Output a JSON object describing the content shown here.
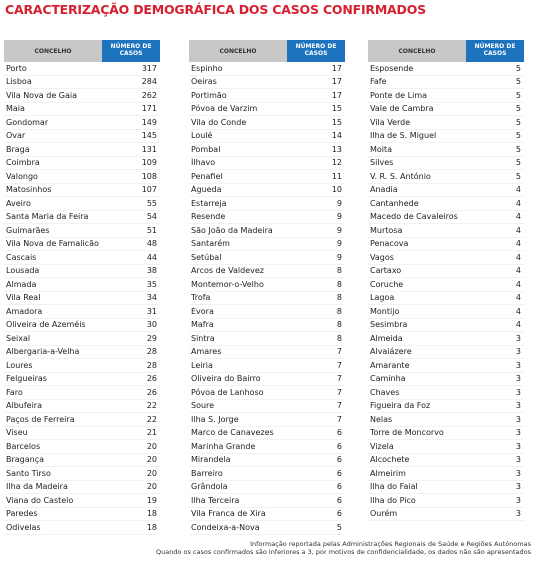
{
  "title": "CARACTERIZAÇÃO DEMOGRÁFICA DOS CASOS CONFIRMADOS",
  "tables": [
    {
      "header": [
        "CONCELHO",
        "NÚMERO DE CASOS"
      ],
      "rows": [
        [
          "Porto",
          317
        ],
        [
          "Lisboa",
          284
        ],
        [
          "Vila Nova de Gaia",
          262
        ],
        [
          "Maia",
          171
        ],
        [
          "Gondomar",
          149
        ],
        [
          "Ovar",
          145
        ],
        [
          "Braga",
          131
        ],
        [
          "Coimbra",
          109
        ],
        [
          "Valongo",
          108
        ],
        [
          "Matosinhos",
          107
        ],
        [
          "Aveiro",
          55
        ],
        [
          "Santa Maria da Feira",
          54
        ],
        [
          "Guimarães",
          51
        ],
        [
          "Vila Nova de Famalicão",
          48
        ],
        [
          "Cascais",
          44
        ],
        [
          "Lousada",
          38
        ],
        [
          "Almada",
          35
        ],
        [
          "Vila Real",
          34
        ],
        [
          "Amadora",
          31
        ],
        [
          "Oliveira de Azeméis",
          30
        ],
        [
          "Seixal",
          29
        ],
        [
          "Albergaria-a-Velha",
          28
        ],
        [
          "Loures",
          28
        ],
        [
          "Felgueiras",
          26
        ],
        [
          "Faro",
          26
        ],
        [
          "Albufeira",
          22
        ],
        [
          "Paços de Ferreira",
          22
        ],
        [
          "Viseu",
          21
        ],
        [
          "Barcelos",
          20
        ],
        [
          "Bragança",
          20
        ],
        [
          "Santo Tirso",
          20
        ],
        [
          "Ilha da Madeira",
          20
        ],
        [
          "Viana do Castelo",
          19
        ],
        [
          "Paredes",
          18
        ],
        [
          "Odivelas",
          18
        ]
      ]
    },
    {
      "header": [
        "CONCELHO",
        "NÚMERO DE CASOS"
      ],
      "rows": [
        [
          "Espinho",
          17
        ],
        [
          "Oeiras",
          17
        ],
        [
          "Portimão",
          17
        ],
        [
          "Póvoa de Varzim",
          15
        ],
        [
          "Vila do Conde",
          15
        ],
        [
          "Loulé",
          14
        ],
        [
          "Pombal",
          13
        ],
        [
          "Ílhavo",
          12
        ],
        [
          "Penafiel",
          11
        ],
        [
          "Águeda",
          10
        ],
        [
          "Estarreja",
          9
        ],
        [
          "Resende",
          9
        ],
        [
          "São João da Madeira",
          9
        ],
        [
          "Santarém",
          9
        ],
        [
          "Setúbal",
          9
        ],
        [
          "Arcos de Valdevez",
          8
        ],
        [
          "Montemor-o-Velho",
          8
        ],
        [
          "Trofa",
          8
        ],
        [
          "Évora",
          8
        ],
        [
          "Mafra",
          8
        ],
        [
          "Sintra",
          8
        ],
        [
          "Amares",
          7
        ],
        [
          "Leiria",
          7
        ],
        [
          "Oliveira do Bairro",
          7
        ],
        [
          "Póvoa de Lanhoso",
          7
        ],
        [
          "Soure",
          7
        ],
        [
          "Ilha S. Jorge",
          7
        ],
        [
          "Marco de Canavezes",
          6
        ],
        [
          "Marinha Grande",
          6
        ],
        [
          "Mirandela",
          6
        ],
        [
          "Barreiro",
          6
        ],
        [
          "Grândola",
          6
        ],
        [
          "Ilha Terceira",
          6
        ],
        [
          "Vila Franca de Xira",
          6
        ],
        [
          "Condeixa-a-Nova",
          5
        ]
      ]
    },
    {
      "header": [
        "CONCELHO",
        "NÚMERO DE CASOS"
      ],
      "rows": [
        [
          "Esposende",
          5
        ],
        [
          "Fafe",
          5
        ],
        [
          "Ponte de Lima",
          5
        ],
        [
          "Vale de Cambra",
          5
        ],
        [
          "Vila Verde",
          5
        ],
        [
          "Ilha de S. Miguel",
          5
        ],
        [
          "Moita",
          5
        ],
        [
          "Silves",
          5
        ],
        [
          "V. R. S. António",
          5
        ],
        [
          "Anadia",
          4
        ],
        [
          "Cantanhede",
          4
        ],
        [
          "Macedo de Cavaleiros",
          4
        ],
        [
          "Murtosa",
          4
        ],
        [
          "Penacova",
          4
        ],
        [
          "Vagos",
          4
        ],
        [
          "Cartaxo",
          4
        ],
        [
          "Coruche",
          4
        ],
        [
          "Lagoa",
          4
        ],
        [
          "Montijo",
          4
        ],
        [
          "Sesimbra",
          4
        ],
        [
          "Almeida",
          3
        ],
        [
          "Alvaiázere",
          3
        ],
        [
          "Amarante",
          3
        ],
        [
          "Caminha",
          3
        ],
        [
          "Chaves",
          3
        ],
        [
          "Figueira da Foz",
          3
        ],
        [
          "Nelas",
          3
        ],
        [
          "Torre de Moncorvo",
          3
        ],
        [
          "Vizela",
          3
        ],
        [
          "Alcochete",
          3
        ],
        [
          "Almeirim",
          3
        ],
        [
          "Ilha do Faial",
          3
        ],
        [
          "Ilha do Pico",
          3
        ],
        [
          "Ourém",
          3
        ]
      ]
    }
  ],
  "notes": [
    "Informação reportada pelas Administrações Regionais de Saúde e Regiões Autónomas",
    "Quando os casos confirmados são inferiores a 3, por motivos de confidencialidade, os dados não são apresentados"
  ]
}
